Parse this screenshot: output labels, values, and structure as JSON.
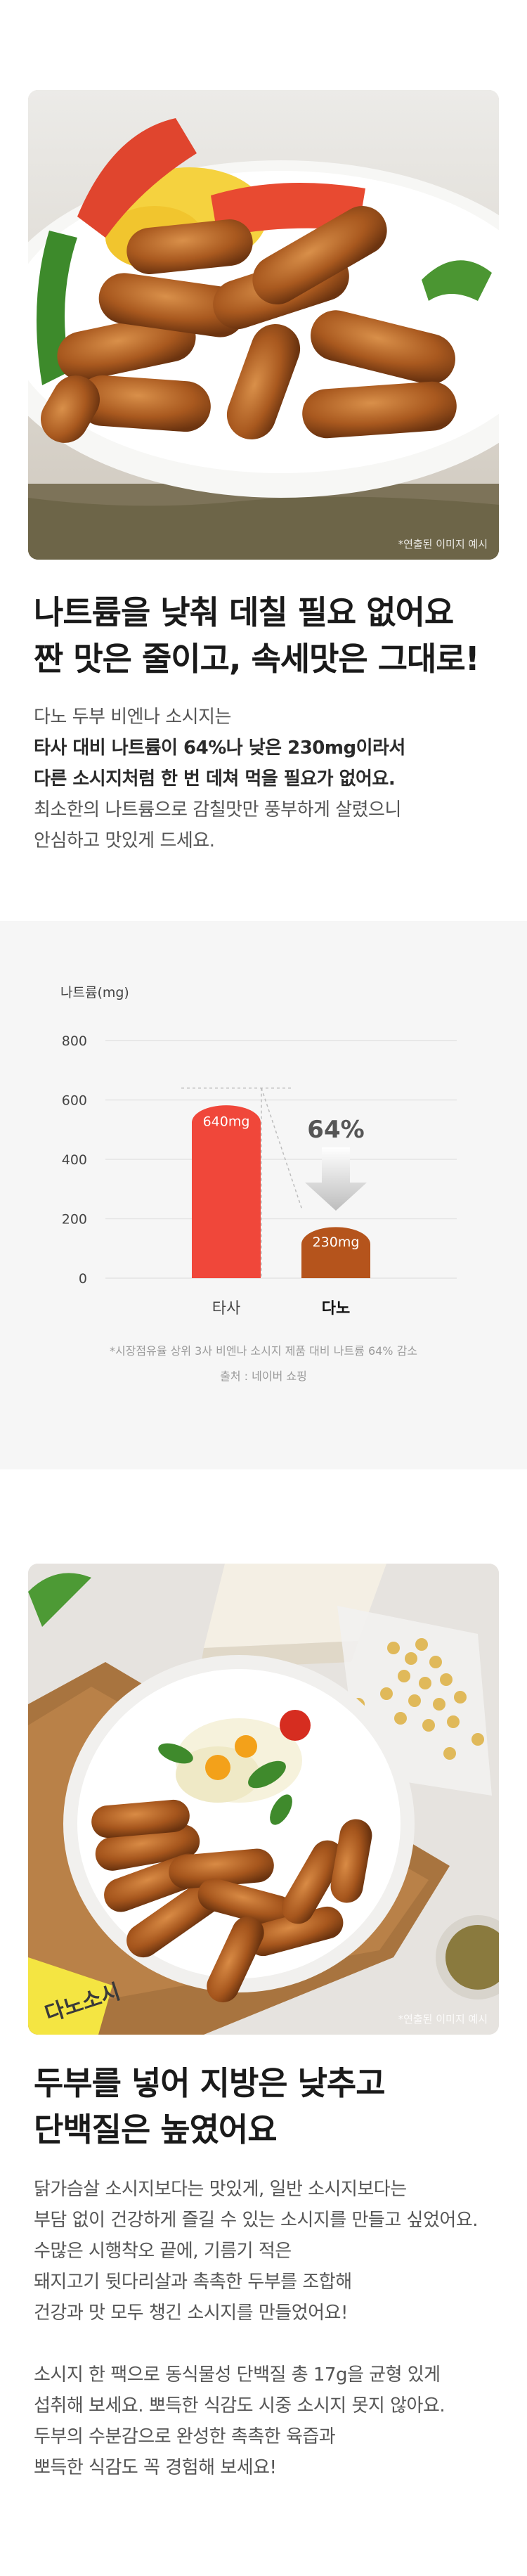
{
  "section1": {
    "photo_caption": "*연출된 이미지 예시",
    "headline_line1": "나트륨을 낮춰 데칠 필요 없어요",
    "headline_line2": "짠 맛은 줄이고, 속세맛은 그대로!",
    "body": [
      {
        "text": "다노 두부 비엔나 소시지는",
        "strong": false
      },
      {
        "text": "타사 대비 나트륨이 64%나 낮은 230mg이라서",
        "strong": true
      },
      {
        "text": "다른 소시지처럼 한 번 데쳐 먹을 필요가 없어요.",
        "strong": true
      },
      {
        "text": "최소한의 나트륨으로 감칠맛만 풍부하게 살렸으니",
        "strong": false
      },
      {
        "text": "안심하고 맛있게 드세요.",
        "strong": false
      }
    ]
  },
  "chart_data": {
    "type": "bar",
    "ylabel": "나트륨(mg)",
    "ylim": [
      0,
      800
    ],
    "yticks": [
      "800",
      "600",
      "400",
      "200",
      "0"
    ],
    "categories": [
      "타사",
      "다노"
    ],
    "values": [
      640,
      230
    ],
    "data_labels": [
      "640mg",
      "230mg"
    ],
    "bar_colors": [
      "#f0473a",
      "#b5541c"
    ],
    "reduction_label": "64%",
    "footnote": "*시장점유율 상위 3사 비엔나 소시지 제품 대비 나트륨 64% 감소",
    "source": "출처 : 네이버 쇼핑",
    "grid": true
  },
  "section2": {
    "photo_caption": "*연출된 이미지 예시",
    "package_text": "다노소시",
    "headline_line1": "두부를 넣어 지방은 낮추고",
    "headline_line2": "단백질은 높였어요",
    "body": [
      "닭가슴살 소시지보다는 맛있게, 일반 소시지보다는",
      "부담 없이 건강하게 즐길 수 있는 소시지를 만들고 싶었어요.",
      "수많은 시행착오 끝에, 기름기 적은",
      "돼지고기 뒷다리살과 촉촉한 두부를 조합해",
      "건강과 맛 모두 챙긴 소시지를 만들었어요!",
      "",
      "소시지 한 팩으로 동식물성 단백질 총 17g을 균형 있게",
      "섭취해 보세요. 뽀득한 식감도 시중 소시지 못지 않아요.",
      "두부의 수분감으로 완성한 촉촉한 육즙과",
      "뽀득한 식감도 꼭 경험해 보세요!"
    ]
  },
  "colors": {
    "red_bar": "#f0473a",
    "brown_bar": "#b5541c",
    "chart_background": "#f6f6f6"
  }
}
